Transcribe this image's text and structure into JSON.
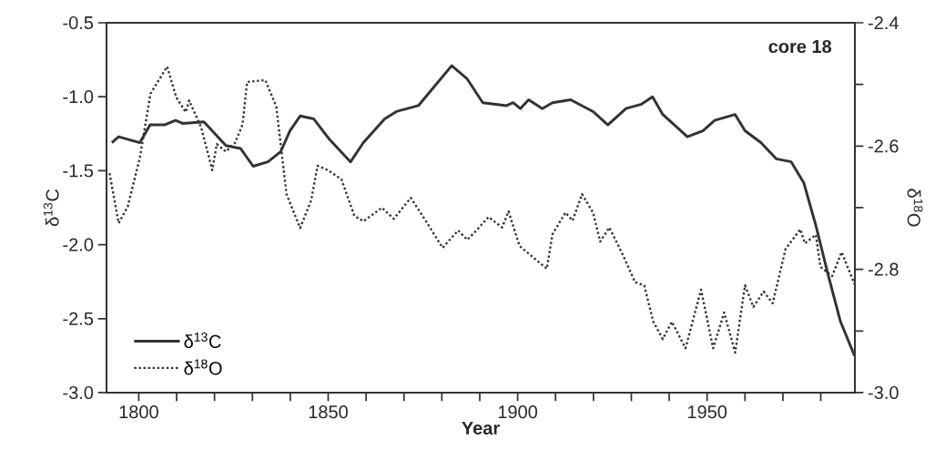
{
  "chart_data": {
    "type": "line",
    "annotations": [
      "core 18"
    ],
    "xlabel": "Year",
    "ylabel": "δ$^{13}$C",
    "y2label": "δ$^{18}$O",
    "xlim": [
      1791.5,
      1989
    ],
    "xticks": [
      {
        "value": 1800,
        "label": "1800"
      },
      {
        "value": 1810,
        "label": null
      },
      {
        "value": 1820,
        "label": null
      },
      {
        "value": 1830,
        "label": null
      },
      {
        "value": 1840,
        "label": null
      },
      {
        "value": 1850,
        "label": "1850"
      },
      {
        "value": 1860,
        "label": null
      },
      {
        "value": 1870,
        "label": null
      },
      {
        "value": 1880,
        "label": null
      },
      {
        "value": 1890,
        "label": null
      },
      {
        "value": 1900,
        "label": "1900"
      },
      {
        "value": 1910,
        "label": null
      },
      {
        "value": 1920,
        "label": null
      },
      {
        "value": 1930,
        "label": null
      },
      {
        "value": 1940,
        "label": null
      },
      {
        "value": 1950,
        "label": "1950"
      },
      {
        "value": 1960,
        "label": null
      },
      {
        "value": 1970,
        "label": null
      },
      {
        "value": 1980,
        "label": null
      }
    ],
    "ylim": [
      -3.0,
      -0.5
    ],
    "yticks": [
      {
        "value": -3.0,
        "label": "-3.0"
      },
      {
        "value": -2.5,
        "label": "-2.5"
      },
      {
        "value": -2.0,
        "label": "-2.0"
      },
      {
        "value": -1.5,
        "label": "-1.5"
      },
      {
        "value": -1.0,
        "label": "-1.0"
      },
      {
        "value": -0.5,
        "label": "-0.5"
      }
    ],
    "y2lim": [
      -3.0,
      -2.4
    ],
    "y2ticks": [
      {
        "value": -3.0,
        "label": "-3.0"
      },
      {
        "value": -2.9,
        "label": null
      },
      {
        "value": -2.8,
        "label": "-2.8"
      },
      {
        "value": -2.7,
        "label": null
      },
      {
        "value": -2.6,
        "label": "-2.6"
      },
      {
        "value": -2.5,
        "label": null
      },
      {
        "value": -2.4,
        "label": "-2.4"
      }
    ],
    "legend": "bottom left",
    "grid": false,
    "series": [
      {
        "name": "δ$^{13}$C",
        "color": "#333333",
        "line_style": "solid",
        "x": [
          1792.9,
          1794.7,
          1800.3,
          1803,
          1806.8,
          1809.7,
          1811.6,
          1817.2,
          1823,
          1826.9,
          1830.2,
          1834.1,
          1837.5,
          1839.9,
          1842.6,
          1846.2,
          1850.4,
          1855.9,
          1859.3,
          1864.9,
          1868,
          1873.8,
          1877.7,
          1882.6,
          1886.7,
          1890.8,
          1897.1,
          1898.8,
          1900.7,
          1902.9,
          1906.5,
          1909.2,
          1914,
          1919.9,
          1923.8,
          1928.6,
          1932.7,
          1935.6,
          1938.3,
          1944.8,
          1948.9,
          1952,
          1957.4,
          1960,
          1964.2,
          1968.3,
          1972.2,
          1975.5,
          1978.7,
          1981.8,
          1985.2,
          1988.9
        ],
        "values": [
          -1.31,
          -1.27,
          -1.31,
          -1.19,
          -1.19,
          -1.16,
          -1.18,
          -1.17,
          -1.33,
          -1.35,
          -1.47,
          -1.44,
          -1.37,
          -1.23,
          -1.13,
          -1.15,
          -1.29,
          -1.44,
          -1.31,
          -1.15,
          -1.1,
          -1.06,
          -0.94,
          -0.79,
          -0.88,
          -1.04,
          -1.06,
          -1.04,
          -1.08,
          -1.02,
          -1.08,
          -1.04,
          -1.02,
          -1.1,
          -1.19,
          -1.08,
          -1.05,
          -1.0,
          -1.12,
          -1.27,
          -1.23,
          -1.16,
          -1.12,
          -1.23,
          -1.31,
          -1.42,
          -1.44,
          -1.58,
          -1.87,
          -2.19,
          -2.52,
          -2.75
        ]
      },
      {
        "name": "δ$^{18}$O",
        "color": "#333333",
        "line_style": "dotted",
        "axis": "y2",
        "x": [
          1792.3,
          1794.7,
          1797.1,
          1800.3,
          1803.1,
          1807.5,
          1809.9,
          1812.4,
          1813.3,
          1816.5,
          1819.4,
          1820.6,
          1823,
          1825.4,
          1827.4,
          1828.6,
          1833.4,
          1836.3,
          1839,
          1842.6,
          1845.5,
          1847.2,
          1849.9,
          1853.5,
          1856.9,
          1859.3,
          1864.2,
          1867.3,
          1871.8,
          1875.4,
          1880.2,
          1884.3,
          1886.7,
          1889.1,
          1892.3,
          1895.9,
          1897.6,
          1900.5,
          1907.7,
          1909.2,
          1912.6,
          1914.5,
          1917,
          1919.9,
          1921.8,
          1924.2,
          1927.8,
          1931,
          1933.4,
          1935.8,
          1938.3,
          1940.7,
          1944.3,
          1948.4,
          1951.6,
          1954.5,
          1957.4,
          1960,
          1962.2,
          1964.9,
          1967.3,
          1970.7,
          1974.6,
          1975.8,
          1978.7,
          1979.9,
          1983,
          1985.5,
          1988.9
        ],
        "values": [
          -2.644,
          -2.725,
          -2.698,
          -2.619,
          -2.515,
          -2.471,
          -2.521,
          -2.545,
          -2.526,
          -2.57,
          -2.639,
          -2.597,
          -2.609,
          -2.595,
          -2.565,
          -2.496,
          -2.493,
          -2.536,
          -2.678,
          -2.733,
          -2.688,
          -2.632,
          -2.639,
          -2.654,
          -2.713,
          -2.722,
          -2.7,
          -2.718,
          -2.684,
          -2.718,
          -2.765,
          -2.737,
          -2.752,
          -2.737,
          -2.715,
          -2.732,
          -2.706,
          -2.762,
          -2.799,
          -2.743,
          -2.708,
          -2.721,
          -2.678,
          -2.708,
          -2.755,
          -2.732,
          -2.777,
          -2.821,
          -2.826,
          -2.885,
          -2.913,
          -2.885,
          -2.928,
          -2.833,
          -2.928,
          -2.87,
          -2.935,
          -2.826,
          -2.861,
          -2.836,
          -2.855,
          -2.767,
          -2.735,
          -2.758,
          -2.744,
          -2.796,
          -2.811,
          -2.772,
          -2.824
        ]
      }
    ]
  }
}
